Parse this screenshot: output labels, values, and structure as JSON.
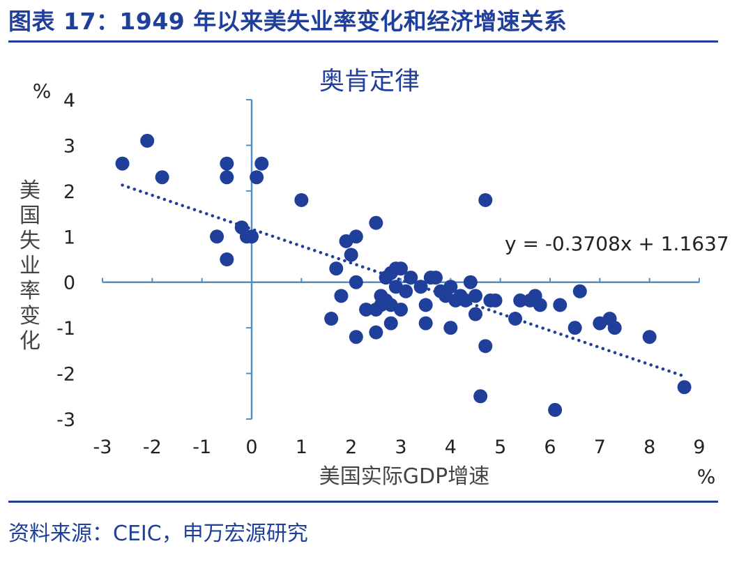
{
  "figure": {
    "title": "图表 17：1949 年以来美失业率变化和经济增速关系",
    "source": "资料来源：CEIC，申万宏源研究",
    "accent_color": "#1f3f9a",
    "axis_color": "#4f8fc8",
    "point_color": "#1f3f9a"
  },
  "chart_data": {
    "type": "scatter",
    "title": "奥肯定律",
    "xlabel": "美国实际GDP增速",
    "ylabel": "美国失业率变化",
    "x_unit": "%",
    "y_unit": "%",
    "xlim": [
      -3,
      9
    ],
    "ylim": [
      -3,
      4
    ],
    "x_ticks": [
      "-3",
      "-2",
      "-1",
      "0",
      "1",
      "2",
      "3",
      "4",
      "5",
      "6",
      "7",
      "8",
      "9"
    ],
    "y_ticks": [
      "4",
      "3",
      "2",
      "1",
      "0",
      "-1",
      "-2",
      "-3"
    ],
    "grid": false,
    "trendline": {
      "slope": -0.3708,
      "intercept": 1.1637,
      "x_range": [
        -2.6,
        8.7
      ],
      "style": "dotted"
    },
    "equation_label": "y = -0.3708x + 1.1637",
    "points": [
      [
        -2.6,
        2.6
      ],
      [
        -2.1,
        3.1
      ],
      [
        -1.8,
        2.3
      ],
      [
        -0.7,
        1.0
      ],
      [
        -0.5,
        0.5
      ],
      [
        -0.5,
        2.6
      ],
      [
        -0.5,
        2.3
      ],
      [
        -0.2,
        1.2
      ],
      [
        -0.1,
        1.0
      ],
      [
        0.0,
        1.0
      ],
      [
        0.1,
        2.3
      ],
      [
        0.2,
        2.6
      ],
      [
        1.0,
        1.8
      ],
      [
        1.6,
        -0.8
      ],
      [
        1.7,
        0.3
      ],
      [
        1.8,
        -0.3
      ],
      [
        1.9,
        0.9
      ],
      [
        2.0,
        0.6
      ],
      [
        2.1,
        1.0
      ],
      [
        2.1,
        0.0
      ],
      [
        2.1,
        -1.2
      ],
      [
        2.3,
        -0.6
      ],
      [
        2.5,
        -0.6
      ],
      [
        2.5,
        -1.1
      ],
      [
        2.5,
        1.3
      ],
      [
        2.6,
        -0.5
      ],
      [
        2.6,
        -0.3
      ],
      [
        2.7,
        0.1
      ],
      [
        2.7,
        -0.4
      ],
      [
        2.8,
        -0.9
      ],
      [
        2.8,
        -0.5
      ],
      [
        2.8,
        0.2
      ],
      [
        2.9,
        0.3
      ],
      [
        2.9,
        -0.1
      ],
      [
        3.0,
        -0.6
      ],
      [
        3.0,
        0.3
      ],
      [
        3.1,
        -0.2
      ],
      [
        3.2,
        0.1
      ],
      [
        3.4,
        -0.1
      ],
      [
        3.5,
        -0.9
      ],
      [
        3.5,
        -0.5
      ],
      [
        3.6,
        0.1
      ],
      [
        3.7,
        0.1
      ],
      [
        3.8,
        -0.2
      ],
      [
        3.9,
        -0.3
      ],
      [
        4.0,
        -1.0
      ],
      [
        4.0,
        -0.1
      ],
      [
        4.1,
        -0.4
      ],
      [
        4.2,
        -0.3
      ],
      [
        4.3,
        -0.4
      ],
      [
        4.4,
        0.0
      ],
      [
        4.5,
        -0.7
      ],
      [
        4.5,
        -0.3
      ],
      [
        4.6,
        -2.5
      ],
      [
        4.7,
        -1.4
      ],
      [
        4.7,
        1.8
      ],
      [
        4.8,
        -0.4
      ],
      [
        4.9,
        -0.4
      ],
      [
        5.3,
        -0.8
      ],
      [
        5.4,
        -0.4
      ],
      [
        5.6,
        -0.4
      ],
      [
        5.7,
        -0.3
      ],
      [
        5.8,
        -0.5
      ],
      [
        6.1,
        -2.8
      ],
      [
        6.2,
        -0.5
      ],
      [
        6.5,
        -1.0
      ],
      [
        6.6,
        -0.2
      ],
      [
        7.0,
        -0.9
      ],
      [
        7.2,
        -0.8
      ],
      [
        7.3,
        -1.0
      ],
      [
        8.0,
        -1.2
      ],
      [
        8.7,
        -2.3
      ]
    ]
  }
}
